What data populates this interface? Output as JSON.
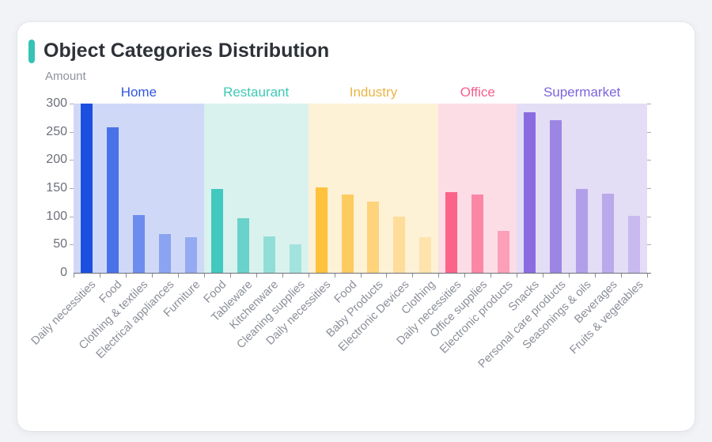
{
  "page": {
    "background_color": "#f1f3f6",
    "card_color": "#ffffff"
  },
  "header": {
    "title": "Object Categories Distribution",
    "accent_color": "#36c3b5"
  },
  "chart_data": {
    "type": "bar",
    "title": "Object Categories Distribution",
    "xlabel": "",
    "ylabel": "Amount",
    "ylim": [
      0,
      300
    ],
    "yticks": [
      0,
      50,
      100,
      150,
      200,
      250,
      300
    ],
    "grid": false,
    "legend": "none",
    "axis_color": "#6e7079",
    "tick_color": "#8a8e98",
    "x_label_color": "#8a8e98",
    "y_label_color": "#6e7079",
    "groups": [
      {
        "name": "Home",
        "label_color": "#3156e0",
        "band_color": "#cfd9f7",
        "items": [
          {
            "category": "Daily necessities",
            "value": 300,
            "color": "#1c4fdf"
          },
          {
            "category": "Food",
            "value": 258,
            "color": "#4a72e8"
          },
          {
            "category": "Clothing & textiles",
            "value": 102,
            "color": "#6d8cee"
          },
          {
            "category": "Electrical appliances",
            "value": 68,
            "color": "#8ba3f1"
          },
          {
            "category": "Furniture",
            "value": 63,
            "color": "#94aaf2"
          }
        ]
      },
      {
        "name": "Restaurant",
        "label_color": "#3fc8b4",
        "band_color": "#d9f2ee",
        "items": [
          {
            "category": "Food",
            "value": 148,
            "color": "#41c8bf"
          },
          {
            "category": "Tableware",
            "value": 97,
            "color": "#69d2ca"
          },
          {
            "category": "Kitchenware",
            "value": 65,
            "color": "#91ded7"
          },
          {
            "category": "Cleaning supplies",
            "value": 50,
            "color": "#a3e3dd"
          }
        ]
      },
      {
        "name": "Industry",
        "label_color": "#edb445",
        "band_color": "#fdf1d6",
        "items": [
          {
            "category": "Daily necessities",
            "value": 151,
            "color": "#fec23d"
          },
          {
            "category": "Food",
            "value": 139,
            "color": "#fdcb5f"
          },
          {
            "category": "Baby Products",
            "value": 126,
            "color": "#fdd47b"
          },
          {
            "category": "Electronic Devices",
            "value": 100,
            "color": "#fedd9b"
          },
          {
            "category": "Clothing",
            "value": 63,
            "color": "#fee3ac"
          }
        ]
      },
      {
        "name": "Office",
        "label_color": "#f5608c",
        "band_color": "#fcdde6",
        "items": [
          {
            "category": "Daily necessities",
            "value": 143,
            "color": "#fb6389"
          },
          {
            "category": "Office supplies",
            "value": 139,
            "color": "#fb86a5"
          },
          {
            "category": "Electronic products",
            "value": 74,
            "color": "#fca0b9"
          }
        ]
      },
      {
        "name": "Supermarket",
        "label_color": "#7d64dc",
        "band_color": "#e3ddf5",
        "items": [
          {
            "category": "Snacks",
            "value": 285,
            "color": "#8a6ce0"
          },
          {
            "category": "Personal care products",
            "value": 271,
            "color": "#9d85e4"
          },
          {
            "category": "Seasonings & oils",
            "value": 149,
            "color": "#b29fe9"
          },
          {
            "category": "Beverages",
            "value": 140,
            "color": "#bba9eb"
          },
          {
            "category": "Fruits & vegetables",
            "value": 101,
            "color": "#c8baef"
          }
        ]
      }
    ]
  }
}
